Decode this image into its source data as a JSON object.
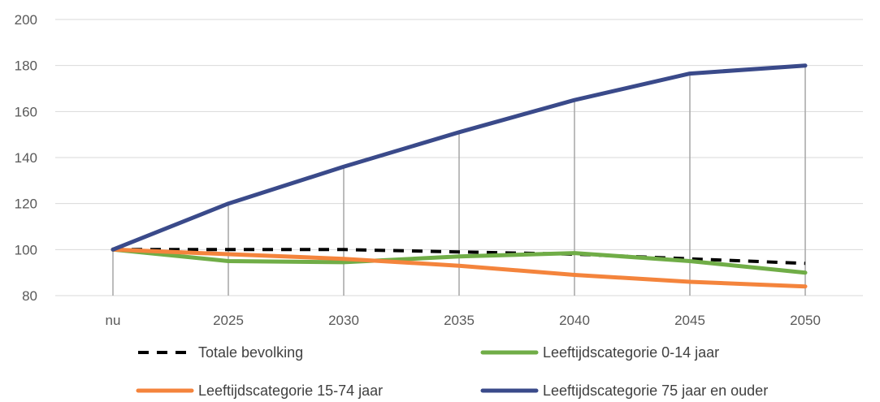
{
  "chart_data": {
    "type": "line",
    "title": "",
    "xlabel": "",
    "ylabel": "",
    "categories": [
      "nu",
      "2025",
      "2030",
      "2035",
      "2040",
      "2045",
      "2050"
    ],
    "ylim": [
      80,
      200
    ],
    "yticks": [
      80,
      100,
      120,
      140,
      160,
      180,
      200
    ],
    "grid": "horizontal",
    "drop_lines": true,
    "legend_position": "bottom",
    "series": [
      {
        "name": "Totale bevolking",
        "color": "#000000",
        "style": "dashed",
        "values": [
          100,
          100,
          100,
          99,
          98,
          96,
          94
        ]
      },
      {
        "name": "Leeftijdscategorie 0-14 jaar",
        "color": "#70ad47",
        "style": "solid",
        "values": [
          100,
          95,
          94.5,
          97,
          98.5,
          95,
          90
        ]
      },
      {
        "name": "Leeftijdscategorie 15-74 jaar",
        "color": "#f4843c",
        "style": "solid",
        "values": [
          100,
          98,
          96,
          93,
          89,
          86,
          84
        ]
      },
      {
        "name": "Leeftijdscategorie 75 jaar en ouder",
        "color": "#3a4a8a",
        "style": "solid",
        "values": [
          100,
          120,
          136,
          151,
          165,
          176.5,
          180
        ]
      }
    ]
  }
}
